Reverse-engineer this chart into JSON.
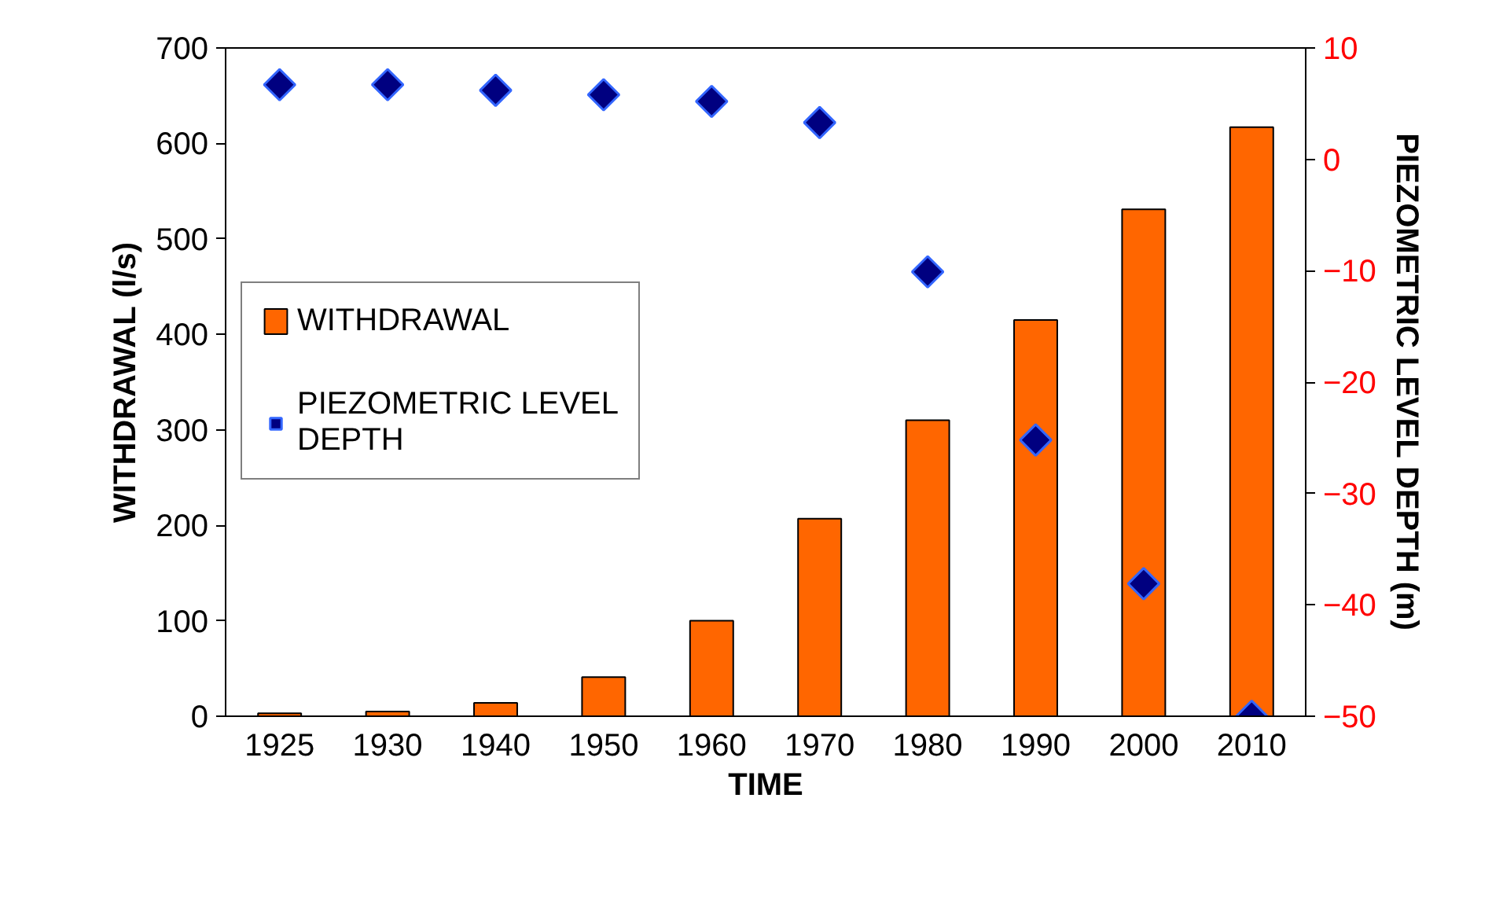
{
  "chart_data": {
    "type": "bar",
    "xlabel": "TIME",
    "ylabel": "WITHDRAWAL (l/s)",
    "y2label": "PIEZOMETRIC LEVEL DEPTH (m)",
    "categories": [
      "1925",
      "1930",
      "1940",
      "1950",
      "1960",
      "1970",
      "1980",
      "1990",
      "2000",
      "2010"
    ],
    "series": [
      {
        "name": "WITHDRAWAL",
        "color": "#ff6600",
        "values": [
          3,
          5,
          14,
          41,
          100,
          207,
          310,
          415,
          531,
          617
        ]
      },
      {
        "name": "PIEZOMETRIC LEVEL DEPTH",
        "type": "scatter",
        "axis": "y2",
        "marker": "diamond",
        "color": "#000080",
        "values": [
          6.7,
          6.7,
          6.2,
          5.8,
          5.2,
          3.3,
          -10.1,
          -25.2,
          -38.1,
          -50
        ]
      }
    ],
    "ylim": [
      0,
      700
    ],
    "yticks": [
      0,
      100,
      200,
      300,
      400,
      500,
      600,
      700
    ],
    "y2lim": [
      -50,
      10
    ],
    "y2ticks": [
      -50,
      -40,
      -30,
      -20,
      -10,
      0,
      10
    ],
    "grid": false,
    "legend": "left"
  }
}
